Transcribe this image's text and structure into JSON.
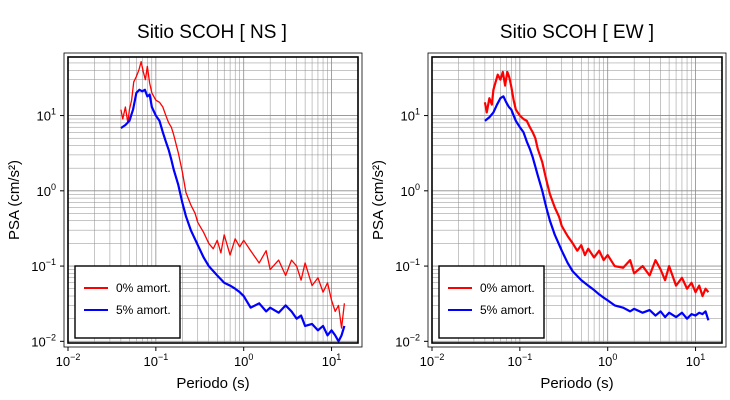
{
  "chart_data": [
    {
      "type": "line",
      "title": "Sitio SCOH [ NS ]",
      "xlabel": "Periodo (s)",
      "ylabel": "PSA (cm/s²)",
      "xscale": "log",
      "yscale": "log",
      "xlim": [
        0.01,
        20
      ],
      "ylim": [
        0.0095,
        60
      ],
      "grid": true,
      "legend_position": "bottom-left",
      "x_ticks": [
        {
          "value": 0.01,
          "base": "10",
          "exp": "−2"
        },
        {
          "value": 0.1,
          "base": "10",
          "exp": "−1"
        },
        {
          "value": 1,
          "base": "10",
          "exp": "0"
        },
        {
          "value": 10,
          "base": "10",
          "exp": "1"
        }
      ],
      "y_ticks": [
        {
          "value": 0.01,
          "base": "10",
          "exp": "−2"
        },
        {
          "value": 0.1,
          "base": "10",
          "exp": "−1"
        },
        {
          "value": 1,
          "base": "10",
          "exp": "0"
        },
        {
          "value": 10,
          "base": "10",
          "exp": "1"
        }
      ],
      "series": [
        {
          "name": "0% amort.",
          "color": "#ff0000",
          "x": [
            0.04,
            0.042,
            0.045,
            0.048,
            0.05,
            0.053,
            0.056,
            0.06,
            0.064,
            0.068,
            0.072,
            0.076,
            0.08,
            0.085,
            0.09,
            0.1,
            0.11,
            0.12,
            0.13,
            0.14,
            0.15,
            0.16,
            0.18,
            0.2,
            0.22,
            0.25,
            0.28,
            0.3,
            0.35,
            0.4,
            0.45,
            0.5,
            0.55,
            0.6,
            0.7,
            0.8,
            0.9,
            1.0,
            1.2,
            1.5,
            1.8,
            2.0,
            2.5,
            3.0,
            3.5,
            4.0,
            4.5,
            5.0,
            6.0,
            7.0,
            8.0,
            9.0,
            10.0,
            11.0,
            12.0,
            13.0,
            14.0
          ],
          "y": [
            12,
            9,
            13,
            8,
            12,
            16,
            28,
            33,
            40,
            52,
            38,
            30,
            45,
            27,
            20,
            16,
            15,
            13,
            10,
            8,
            7,
            5.5,
            3.2,
            1.8,
            0.95,
            0.65,
            0.5,
            0.38,
            0.28,
            0.2,
            0.17,
            0.22,
            0.15,
            0.26,
            0.14,
            0.23,
            0.18,
            0.22,
            0.16,
            0.11,
            0.16,
            0.09,
            0.12,
            0.075,
            0.12,
            0.1,
            0.065,
            0.11,
            0.055,
            0.07,
            0.045,
            0.06,
            0.035,
            0.025,
            0.03,
            0.015,
            0.032
          ]
        },
        {
          "name": "5% amort.",
          "color": "#0000ff",
          "x": [
            0.04,
            0.045,
            0.05,
            0.055,
            0.06,
            0.065,
            0.07,
            0.075,
            0.08,
            0.085,
            0.09,
            0.1,
            0.11,
            0.12,
            0.13,
            0.14,
            0.15,
            0.16,
            0.18,
            0.2,
            0.22,
            0.25,
            0.3,
            0.35,
            0.4,
            0.5,
            0.6,
            0.7,
            0.8,
            0.9,
            1.0,
            1.2,
            1.5,
            1.8,
            2.0,
            2.5,
            3.0,
            3.5,
            4.0,
            4.5,
            5.0,
            6.0,
            7.0,
            8.0,
            9.0,
            10.0,
            11.0,
            12.0,
            13.0,
            14.0
          ],
          "y": [
            6.8,
            7.5,
            8.5,
            12,
            20,
            22,
            21,
            22,
            18,
            19,
            13,
            10,
            8.5,
            6,
            4.5,
            3.5,
            2.6,
            1.9,
            1.2,
            0.7,
            0.46,
            0.3,
            0.19,
            0.13,
            0.1,
            0.075,
            0.06,
            0.055,
            0.05,
            0.045,
            0.04,
            0.028,
            0.032,
            0.025,
            0.028,
            0.024,
            0.03,
            0.025,
            0.02,
            0.022,
            0.016,
            0.017,
            0.014,
            0.016,
            0.012,
            0.014,
            0.012,
            0.01,
            0.012,
            0.016
          ]
        }
      ]
    },
    {
      "type": "line",
      "title": "Sitio SCOH [ EW ]",
      "xlabel": "Periodo (s)",
      "ylabel": "PSA (cm/s²)",
      "xscale": "log",
      "yscale": "log",
      "xlim": [
        0.01,
        20
      ],
      "ylim": [
        0.0095,
        60
      ],
      "grid": true,
      "legend_position": "bottom-left",
      "x_ticks": [
        {
          "value": 0.01,
          "base": "10",
          "exp": "−2"
        },
        {
          "value": 0.1,
          "base": "10",
          "exp": "−1"
        },
        {
          "value": 1,
          "base": "10",
          "exp": "0"
        },
        {
          "value": 10,
          "base": "10",
          "exp": "1"
        }
      ],
      "y_ticks": [
        {
          "value": 0.01,
          "base": "10",
          "exp": "−2"
        },
        {
          "value": 0.1,
          "base": "10",
          "exp": "−1"
        },
        {
          "value": 1,
          "base": "10",
          "exp": "0"
        },
        {
          "value": 10,
          "base": "10",
          "exp": "1"
        }
      ],
      "series": [
        {
          "name": "0% amort.",
          "color": "#ff0000",
          "x": [
            0.04,
            0.042,
            0.045,
            0.048,
            0.05,
            0.053,
            0.056,
            0.06,
            0.064,
            0.068,
            0.072,
            0.076,
            0.08,
            0.085,
            0.09,
            0.1,
            0.11,
            0.12,
            0.13,
            0.14,
            0.15,
            0.16,
            0.18,
            0.2,
            0.22,
            0.25,
            0.28,
            0.3,
            0.35,
            0.4,
            0.45,
            0.5,
            0.55,
            0.6,
            0.7,
            0.8,
            0.9,
            1.0,
            1.2,
            1.5,
            1.8,
            2.0,
            2.5,
            3.0,
            3.5,
            4.0,
            4.5,
            5.0,
            6.0,
            7.0,
            8.0,
            9.0,
            10.0,
            11.0,
            12.0,
            13.0,
            14.0
          ],
          "y": [
            15,
            11,
            17,
            14,
            22,
            28,
            35,
            30,
            38,
            25,
            38,
            32,
            24,
            16,
            12,
            10,
            9,
            8.5,
            7,
            6,
            5,
            3.6,
            2.4,
            1.4,
            0.9,
            0.6,
            0.45,
            0.34,
            0.25,
            0.2,
            0.16,
            0.19,
            0.14,
            0.17,
            0.13,
            0.16,
            0.12,
            0.14,
            0.1,
            0.095,
            0.12,
            0.08,
            0.1,
            0.075,
            0.12,
            0.09,
            0.065,
            0.1,
            0.055,
            0.07,
            0.05,
            0.06,
            0.045,
            0.055,
            0.04,
            0.05,
            0.045
          ]
        },
        {
          "name": "5% amort.",
          "color": "#0000ff",
          "x": [
            0.04,
            0.045,
            0.05,
            0.055,
            0.06,
            0.065,
            0.07,
            0.075,
            0.08,
            0.085,
            0.09,
            0.1,
            0.11,
            0.12,
            0.13,
            0.14,
            0.15,
            0.16,
            0.18,
            0.2,
            0.22,
            0.25,
            0.3,
            0.35,
            0.4,
            0.5,
            0.6,
            0.7,
            0.8,
            0.9,
            1.0,
            1.2,
            1.5,
            1.8,
            2.0,
            2.5,
            3.0,
            3.5,
            4.0,
            4.5,
            5.0,
            6.0,
            7.0,
            8.0,
            9.0,
            10.0,
            11.0,
            12.0,
            13.0,
            14.0
          ],
          "y": [
            8.5,
            9.5,
            11,
            14,
            17,
            18,
            15,
            13,
            12,
            10,
            8.5,
            7,
            6,
            4.5,
            3.6,
            2.8,
            2.1,
            1.6,
            1.0,
            0.6,
            0.4,
            0.26,
            0.16,
            0.11,
            0.085,
            0.065,
            0.055,
            0.048,
            0.042,
            0.038,
            0.035,
            0.03,
            0.028,
            0.025,
            0.027,
            0.024,
            0.026,
            0.022,
            0.025,
            0.021,
            0.024,
            0.021,
            0.024,
            0.02,
            0.023,
            0.022,
            0.024,
            0.023,
            0.025,
            0.019
          ]
        }
      ]
    }
  ]
}
